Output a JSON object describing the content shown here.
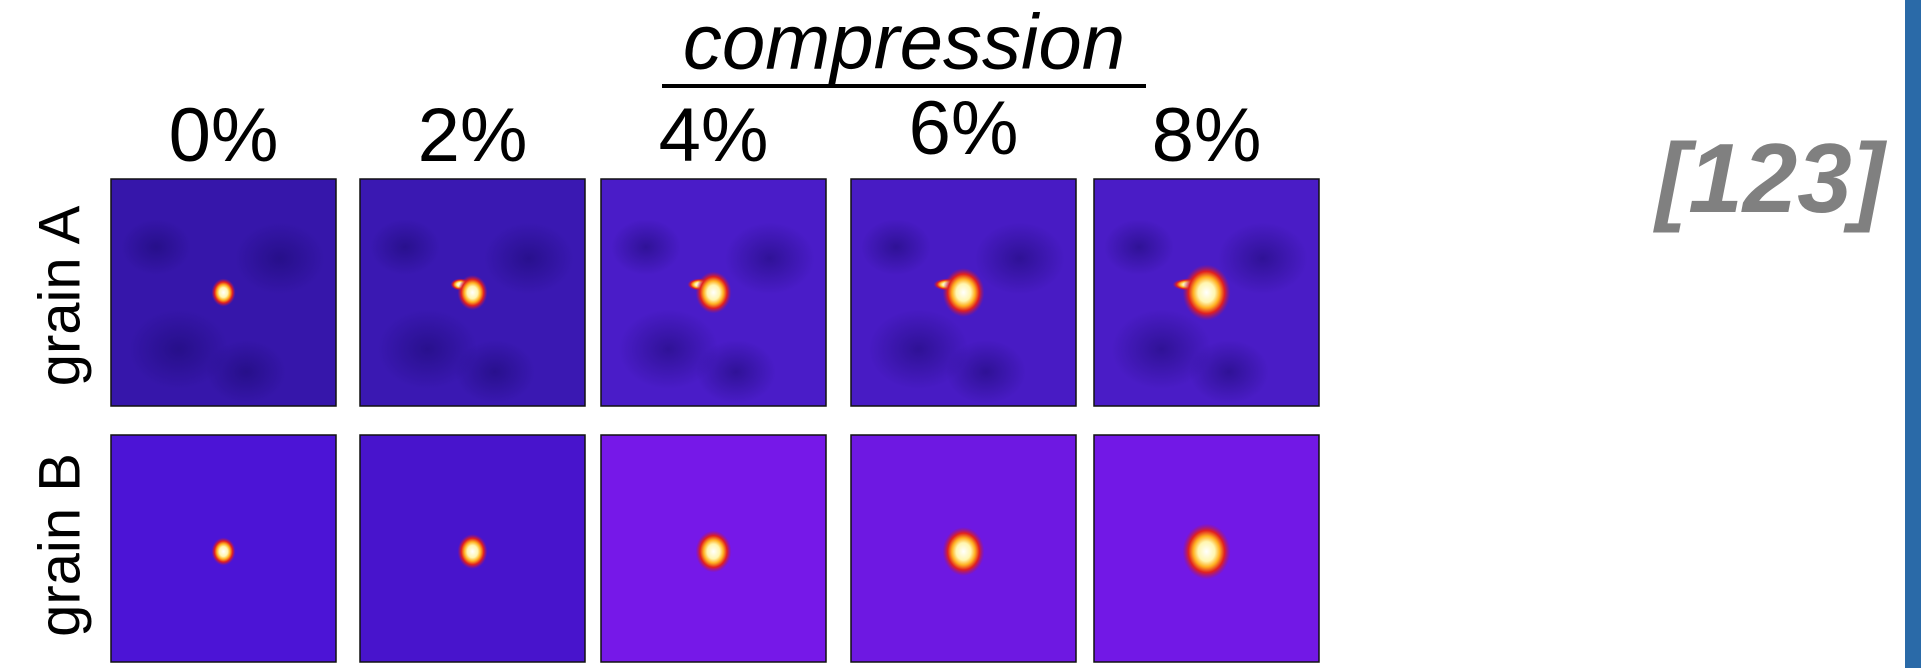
{
  "header": {
    "title": "compression",
    "reference": "[123]"
  },
  "columns": [
    "0%",
    "2%",
    "4%",
    "6%",
    "8%"
  ],
  "rows": [
    "grain A",
    "grain B"
  ]
}
